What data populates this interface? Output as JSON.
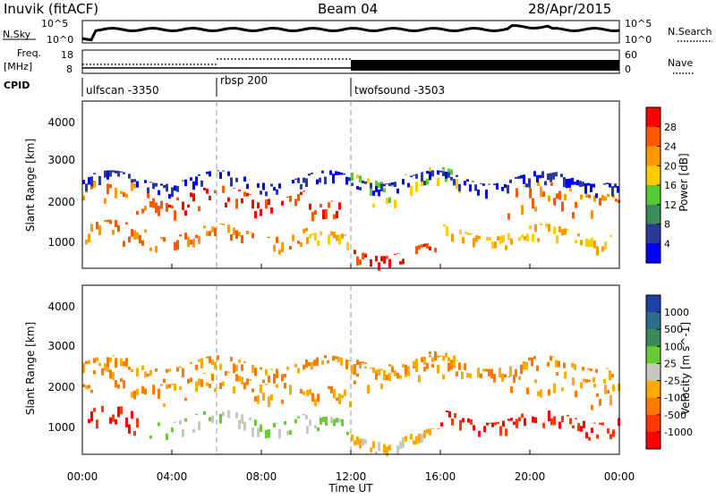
{
  "header": {
    "station": "Inuvik (fitACF)",
    "beam": "Beam 04",
    "date": "28/Apr/2015"
  },
  "noise_panel": {
    "left_label": "N.Sky",
    "right_label": "N.Search",
    "ticks_left": [
      "10^5",
      "10^0"
    ],
    "ticks_right": [
      "10^5",
      "10^0"
    ]
  },
  "freq_panel": {
    "left_label_1": "Freq.",
    "left_label_2": "[MHz]",
    "ticks_left": [
      "18",
      "8"
    ],
    "right_label": "Nave",
    "ticks_right": [
      "60",
      "0"
    ]
  },
  "cpid": {
    "label": "CPID",
    "modes": [
      {
        "name": "ulfscan -3350",
        "start_hour": 0
      },
      {
        "name": "rbsp 200",
        "start_hour": 6
      },
      {
        "name": "twofsound -3503",
        "start_hour": 12
      }
    ]
  },
  "chart_data": [
    {
      "type": "heatmap",
      "name": "power",
      "ylabel": "Slant Range [km]",
      "yticks": [
        "4000",
        "3000",
        "2000",
        "1000"
      ],
      "ylim": [
        200,
        4600
      ],
      "colorbar": {
        "label": "Power [dB]",
        "ticks": [
          "28",
          "24",
          "20",
          "16",
          "12",
          "8",
          "4"
        ],
        "colors": [
          "#ff0000",
          "#ff5a00",
          "#ff9900",
          "#ffcc00",
          "#55cc33",
          "#3a8c5a",
          "#2a3a9a",
          "#0000ff"
        ]
      }
    },
    {
      "type": "heatmap",
      "name": "velocity",
      "ylabel": "Slant Range [km]",
      "yticks": [
        "4000",
        "3000",
        "2000",
        "1000"
      ],
      "ylim": [
        200,
        4600
      ],
      "colorbar": {
        "label": "Velocity [m s^-1]",
        "ticks": [
          "1000",
          "500",
          "100",
          "25",
          "-25",
          "-100",
          "-500",
          "-1000"
        ],
        "colors": [
          "#1e3fa8",
          "#2e6d8a",
          "#3a8a5a",
          "#66cc33",
          "#c8c8c0",
          "#ffaa00",
          "#ff7a00",
          "#ff3a00",
          "#ff0000"
        ]
      }
    }
  ],
  "time_axis": {
    "xlabel": "Time UT",
    "ticks": [
      "00:00",
      "04:00",
      "08:00",
      "12:00",
      "16:00",
      "20:00",
      "00:00"
    ],
    "xlim": [
      0,
      24
    ]
  }
}
